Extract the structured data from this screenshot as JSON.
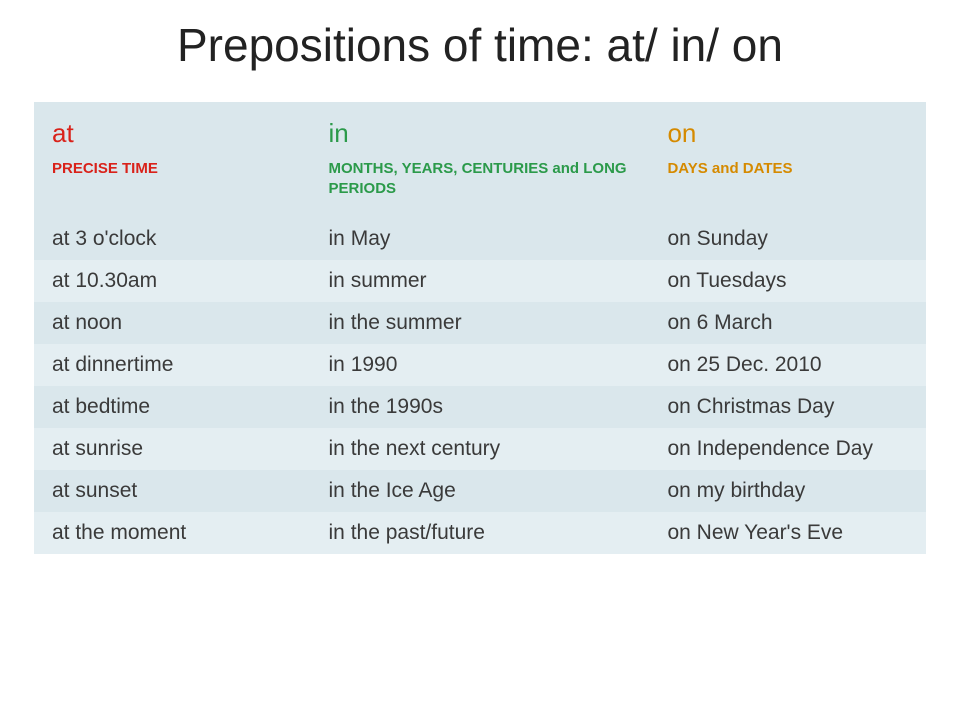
{
  "title": "Prepositions of time: at/ in/ on",
  "columns": {
    "at": {
      "label": "at",
      "desc": "PRECISE TIME",
      "color": "#d9221a"
    },
    "in": {
      "label": "in",
      "desc": "MONTHS, YEARS, CENTURIES and LONG PERIODS",
      "color": "#2b9a4a"
    },
    "on": {
      "label": "on",
      "desc": "DAYS and DATES",
      "color": "#d58a00"
    }
  },
  "rows": [
    {
      "at": "at 3 o'clock",
      "in": "in May",
      "on": "on Sunday"
    },
    {
      "at": "at 10.30am",
      "in": "in summer",
      "on": "on Tuesdays"
    },
    {
      "at": "at noon",
      "in": "in the summer",
      "on": "on 6 March"
    },
    {
      "at": "at dinnertime",
      "in": "in 1990",
      "on": "on 25 Dec. 2010"
    },
    {
      "at": "at bedtime",
      "in": "in the 1990s",
      "on": "on Christmas Day"
    },
    {
      "at": "at sunrise",
      "in": "in the next century",
      "on": "on Independence Day"
    },
    {
      "at": "at sunset",
      "in": "in the Ice Age",
      "on": "on my birthday"
    },
    {
      "at": "at the moment",
      "in": "in the past/future",
      "on": "on New Year's Eve"
    }
  ],
  "style": {
    "table_bg": "#dae7ec",
    "row_alt_bg": "#e4eef2",
    "title_fontsize": 46,
    "prep_fontsize": 26,
    "desc_fontsize": 15,
    "example_fontsize": 21,
    "text_color": "#3a3a3a"
  }
}
